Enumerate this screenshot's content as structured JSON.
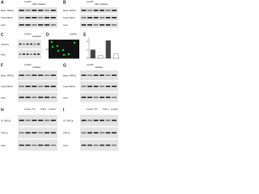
{
  "panels": [
    {
      "letter": "A",
      "header": [
        "LysoPC",
        "PEG Catalase"
      ],
      "rows": [
        "Biotin-TRPC6",
        "Total TRPC6",
        "Actin"
      ]
    },
    {
      "letter": "B",
      "header": [
        "LysoPC",
        "PEG Catalase"
      ],
      "rows": [
        "Biotin-TRPC6",
        "Total TRPC6",
        "Actin"
      ]
    },
    {
      "letter": "C",
      "header": [
        "Control",
        "NoxRNAi"
      ],
      "rows": [
        "p47phox",
        "Actin"
      ]
    },
    {
      "letter": "D",
      "header": [
        "LysoPC"
      ],
      "rows": [
        "DHE"
      ]
    },
    {
      "letter": "E",
      "values": [
        1.0,
        0.35,
        2.1,
        0.5
      ],
      "ylim": [
        0,
        2.5
      ],
      "yticks": [
        0,
        1,
        2
      ]
    },
    {
      "letter": "F",
      "header": [
        "LysoPC",
        "Catalase"
      ],
      "rows": [
        "Biotin-TRPC6",
        "Total TRPC6",
        "Actin"
      ]
    },
    {
      "letter": "G",
      "header": [
        "LysoPC",
        "Catalase"
      ],
      "rows": [
        "Biotin-TRPC6",
        "Total TRPC6",
        "Actin"
      ]
    },
    {
      "letter": "H",
      "header": [
        "Control",
        "PC",
        "TNF-α",
        "LysoPC"
      ],
      "rows": [
        "IP: TRPC6",
        "TRPC6",
        "Actin"
      ]
    },
    {
      "letter": "I",
      "header": [
        "Control",
        "PC",
        "TNF-α",
        "LysoPC"
      ],
      "rows": [
        "IP: TRPC6",
        "TRPC6",
        "Actin"
      ]
    }
  ]
}
